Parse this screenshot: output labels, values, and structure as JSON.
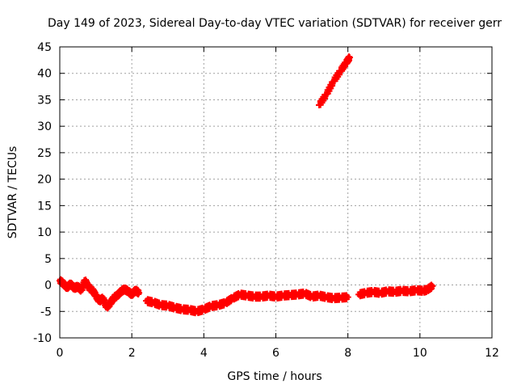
{
  "chart_data": {
    "type": "scatter",
    "title": "Day 149 of 2023, Sidereal Day-to-day VTEC variation (SDTVAR) for receiver gerr",
    "xlabel": "GPS time / hours",
    "ylabel": "SDTVAR / TECUs",
    "xlim": [
      0,
      12
    ],
    "ylim": [
      -10,
      45
    ],
    "xticks": [
      0,
      2,
      4,
      6,
      8,
      10,
      12
    ],
    "yticks": [
      -10,
      -5,
      0,
      5,
      10,
      15,
      20,
      25,
      30,
      35,
      40,
      45
    ],
    "grid": true,
    "marker": "plus",
    "color": "#ff0000",
    "series": [
      {
        "points": [
          [
            0.0,
            0.8
          ],
          [
            0.1,
            0.3
          ],
          [
            0.2,
            -0.5
          ],
          [
            0.3,
            0.2
          ],
          [
            0.4,
            -0.6
          ],
          [
            0.5,
            -0.3
          ],
          [
            0.6,
            -1.0
          ],
          [
            0.7,
            0.9
          ],
          [
            0.8,
            -0.5
          ],
          [
            0.9,
            -0.9
          ],
          [
            1.0,
            -2.0
          ],
          [
            1.1,
            -3.0
          ],
          [
            1.2,
            -2.5
          ],
          [
            1.3,
            -4.2
          ],
          [
            1.4,
            -3.5
          ],
          [
            1.5,
            -2.4
          ],
          [
            1.6,
            -2.0
          ],
          [
            1.7,
            -1.2
          ],
          [
            1.8,
            -0.8
          ],
          [
            1.9,
            -1.2
          ],
          [
            2.0,
            -1.8
          ],
          [
            2.1,
            -1.0
          ],
          [
            2.2,
            -1.5
          ]
        ]
      },
      {
        "points": [
          [
            2.4,
            -3.0
          ],
          [
            2.6,
            -3.3
          ],
          [
            2.8,
            -3.8
          ],
          [
            3.0,
            -3.9
          ],
          [
            3.2,
            -4.3
          ],
          [
            3.4,
            -4.6
          ],
          [
            3.6,
            -4.7
          ],
          [
            3.8,
            -5.0
          ],
          [
            4.0,
            -4.6
          ],
          [
            4.2,
            -4.0
          ],
          [
            4.4,
            -3.8
          ],
          [
            4.6,
            -3.4
          ],
          [
            4.8,
            -2.5
          ],
          [
            5.0,
            -1.8
          ],
          [
            5.2,
            -2.0
          ],
          [
            5.4,
            -2.2
          ],
          [
            5.6,
            -2.2
          ],
          [
            5.8,
            -2.0
          ],
          [
            6.0,
            -2.2
          ],
          [
            6.2,
            -2.0
          ],
          [
            6.4,
            -1.9
          ],
          [
            6.6,
            -1.8
          ],
          [
            6.8,
            -1.6
          ],
          [
            7.0,
            -2.2
          ],
          [
            7.2,
            -2.0
          ],
          [
            7.4,
            -2.3
          ],
          [
            7.6,
            -2.5
          ],
          [
            7.8,
            -2.4
          ],
          [
            8.0,
            -2.3
          ]
        ]
      },
      {
        "points": [
          [
            8.3,
            -1.8
          ],
          [
            8.5,
            -1.5
          ],
          [
            8.7,
            -1.3
          ],
          [
            8.9,
            -1.5
          ],
          [
            9.1,
            -1.2
          ],
          [
            9.3,
            -1.3
          ],
          [
            9.5,
            -1.1
          ],
          [
            9.7,
            -1.2
          ],
          [
            9.9,
            -1.0
          ],
          [
            10.1,
            -1.1
          ],
          [
            10.2,
            -0.9
          ],
          [
            10.35,
            -0.2
          ]
        ]
      },
      {
        "points": [
          [
            7.2,
            34.0
          ],
          [
            7.4,
            36.0
          ],
          [
            7.6,
            38.5
          ],
          [
            7.8,
            40.5
          ],
          [
            7.95,
            42.0
          ],
          [
            8.05,
            43.0
          ]
        ]
      }
    ]
  }
}
